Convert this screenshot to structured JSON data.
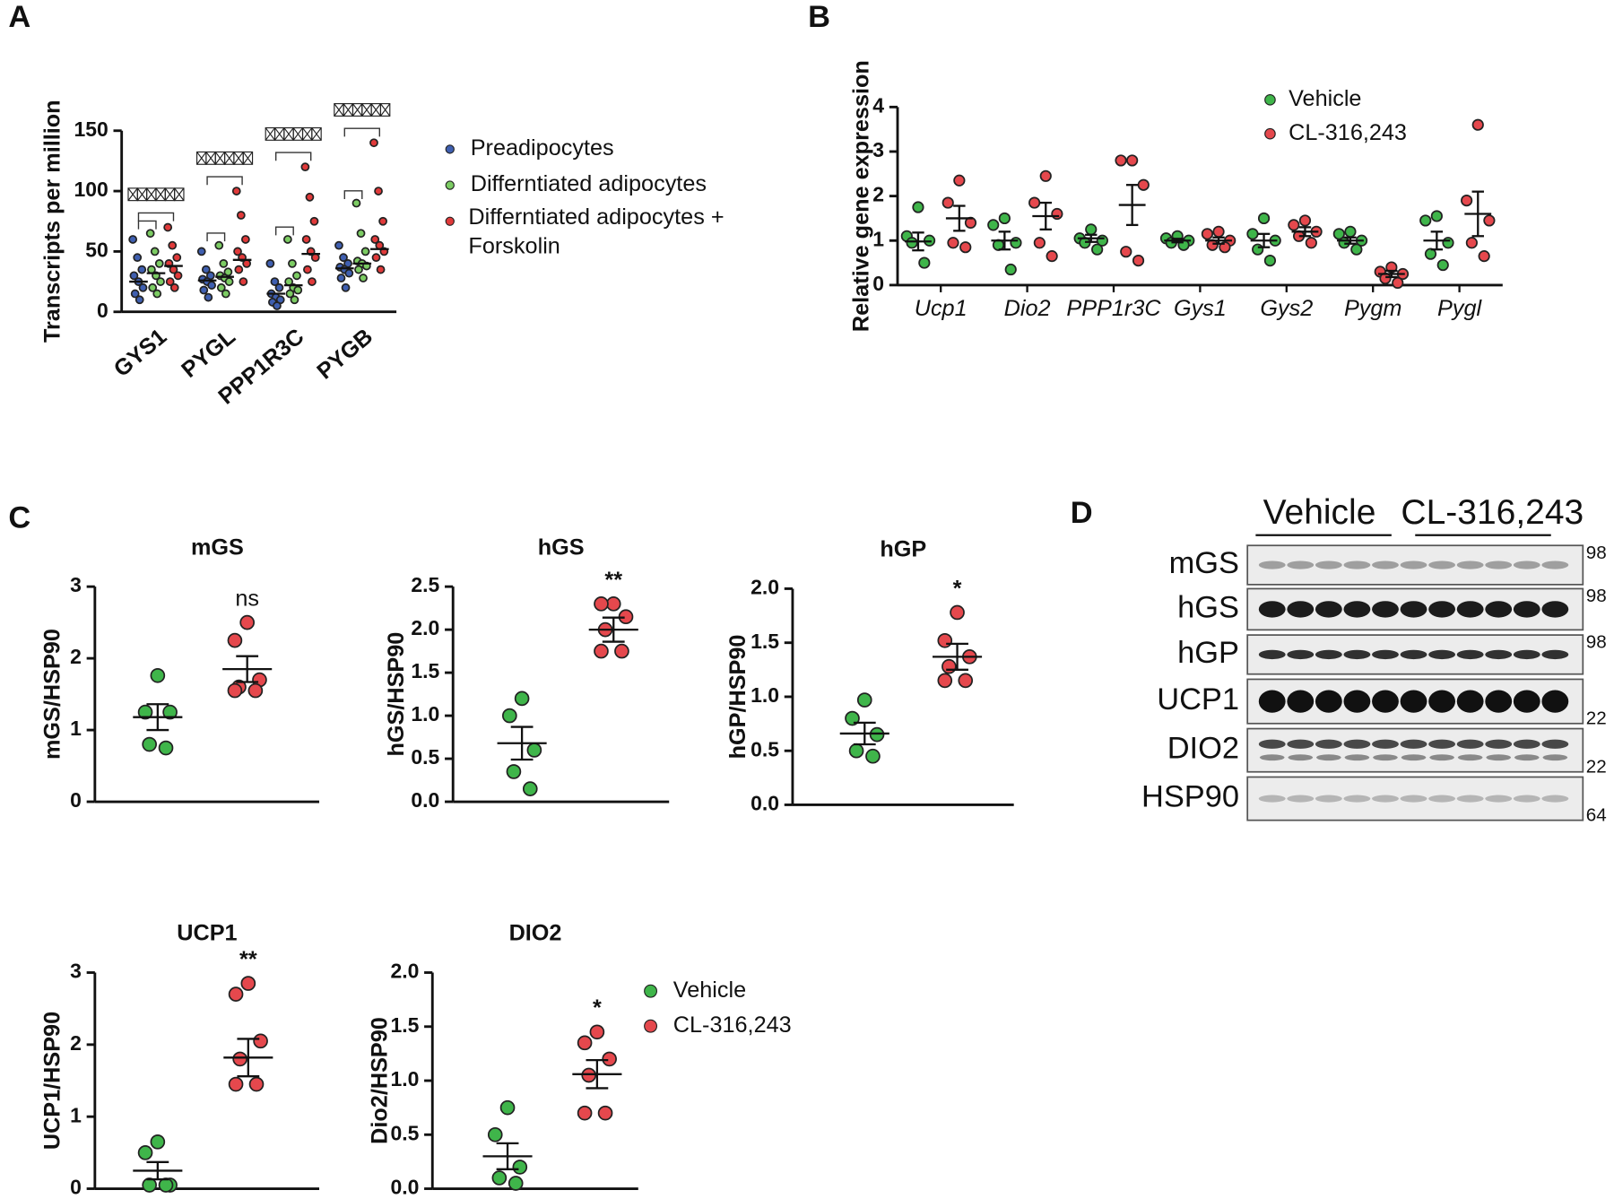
{
  "chart_data": [
    {
      "type": "strip",
      "label": "A",
      "ylabel": "Transcripts per million",
      "categories": [
        "GYS1",
        "PYGL",
        "PPP1R3C",
        "PYGB"
      ],
      "ylim": [
        0,
        150
      ],
      "yticks": [
        0,
        50,
        100,
        150
      ],
      "series": [
        {
          "name": "Preadipocytes",
          "color": "#3f5fb0",
          "values": [
            [
              60,
              45,
              35,
              30,
              25,
              20,
              15,
              10
            ],
            [
              50,
              35,
              30,
              27,
              25,
              22,
              18,
              12
            ],
            [
              40,
              25,
              20,
              15,
              12,
              10,
              8,
              5
            ],
            [
              55,
              45,
              40,
              37,
              35,
              32,
              28,
              20
            ]
          ],
          "means": [
            25,
            26,
            15,
            36
          ]
        },
        {
          "name": "Differntiated adipocytes",
          "color": "#7ccc63",
          "values": [
            [
              65,
              50,
              40,
              35,
              30,
              25,
              20,
              15
            ],
            [
              55,
              40,
              33,
              30,
              28,
              25,
              20,
              15
            ],
            [
              60,
              40,
              30,
              25,
              20,
              18,
              15,
              10
            ],
            [
              90,
              65,
              50,
              42,
              40,
              38,
              35,
              28
            ]
          ],
          "means": [
            32,
            29,
            22,
            40
          ]
        },
        {
          "name": "Differntiated adipocytes + Forskolin",
          "color": "#e03a3a",
          "values": [
            [
              70,
              55,
              45,
              40,
              35,
              30,
              25,
              20
            ],
            [
              100,
              80,
              60,
              50,
              45,
              40,
              35,
              25
            ],
            [
              120,
              95,
              75,
              60,
              50,
              45,
              35,
              25
            ],
            [
              140,
              100,
              75,
              60,
              55,
              50,
              45,
              35
            ]
          ],
          "means": [
            38,
            43,
            48,
            52
          ]
        }
      ]
    },
    {
      "type": "dot",
      "label": "B",
      "ylabel": "Relative gene expression",
      "categories": [
        "Ucp1",
        "Dio2",
        "PPP1r3C",
        "Gys1",
        "Gys2",
        "Pygm",
        "Pygl"
      ],
      "ylim": [
        0,
        4
      ],
      "yticks": [
        0,
        1,
        2,
        3,
        4
      ],
      "series": [
        {
          "name": "Vehicle",
          "color": "#3fb54a",
          "values": [
            [
              1.75,
              1.1,
              1.0,
              0.95,
              0.5
            ],
            [
              1.5,
              1.35,
              0.95,
              0.9,
              0.35
            ],
            [
              1.25,
              1.05,
              1.0,
              0.95,
              0.8
            ],
            [
              1.1,
              1.05,
              1.0,
              0.95,
              0.9
            ],
            [
              1.5,
              1.15,
              1.0,
              0.8,
              0.55
            ],
            [
              1.2,
              1.15,
              1.0,
              0.95,
              0.8
            ],
            [
              1.55,
              1.45,
              0.95,
              0.7,
              0.45
            ]
          ],
          "means": [
            0.98,
            1.0,
            1.05,
            1.0,
            1.0,
            1.0,
            1.0
          ],
          "errors": [
            0.2,
            0.2,
            0.08,
            0.04,
            0.15,
            0.07,
            0.2
          ]
        },
        {
          "name": "CL-316,243",
          "color": "#e5484d",
          "values": [
            [
              2.35,
              1.85,
              1.4,
              0.95,
              0.85
            ],
            [
              2.45,
              1.85,
              1.6,
              0.95,
              0.65
            ],
            [
              2.8,
              2.8,
              2.25,
              0.75,
              0.55
            ],
            [
              1.2,
              1.15,
              1.0,
              0.9,
              0.85
            ],
            [
              1.45,
              1.35,
              1.2,
              1.1,
              0.95
            ],
            [
              0.4,
              0.3,
              0.25,
              0.15,
              0.05
            ],
            [
              3.6,
              1.9,
              1.45,
              0.95,
              0.65
            ]
          ],
          "means": [
            1.5,
            1.55,
            1.8,
            1.0,
            1.2,
            0.25,
            1.6
          ],
          "errors": [
            0.28,
            0.3,
            0.45,
            0.07,
            0.1,
            0.07,
            0.5
          ]
        }
      ]
    },
    {
      "type": "dot",
      "label": "C",
      "title": "mGS",
      "ylabel": "mGS/HSP90",
      "annotation": "ns",
      "ylim": [
        0,
        3
      ],
      "yticks": [
        0,
        1,
        2,
        3
      ],
      "series": [
        {
          "color": "#3fb54a",
          "values": [
            1.76,
            1.25,
            1.25,
            0.8,
            0.75
          ],
          "mean": 1.18,
          "error": 0.18
        },
        {
          "color": "#e5484d",
          "values": [
            2.5,
            2.25,
            1.7,
            1.6,
            1.55,
            1.55
          ],
          "mean": 1.85,
          "error": 0.18
        }
      ]
    },
    {
      "type": "dot",
      "title": "hGS",
      "ylabel": "hGS/HSP90",
      "annotation": "**",
      "ylim": [
        0,
        2.5
      ],
      "yticks": [
        {
          "value": 0,
          "label": "0.0"
        },
        0.5,
        {
          "value": 1,
          "label": "1.0"
        },
        1.5,
        {
          "value": 2,
          "label": "2.0"
        },
        2.5
      ],
      "series": [
        {
          "color": "#3fb54a",
          "values": [
            1.2,
            1.0,
            0.6,
            0.35,
            0.15
          ],
          "mean": 0.68,
          "error": 0.19
        },
        {
          "color": "#e5484d",
          "values": [
            2.3,
            2.3,
            2.15,
            2.0,
            1.75,
            1.75
          ],
          "mean": 2.0,
          "error": 0.14
        }
      ]
    },
    {
      "type": "dot",
      "title": "hGP",
      "ylabel": "hGP/HSP90",
      "annotation": "*",
      "ylim": [
        0,
        2
      ],
      "yticks": [
        {
          "value": 0,
          "label": "0.0"
        },
        0.5,
        {
          "value": 1,
          "label": "1.0"
        },
        1.5,
        {
          "value": 2,
          "label": "2.0"
        }
      ],
      "series": [
        {
          "color": "#3fb54a",
          "values": [
            0.97,
            0.8,
            0.65,
            0.5,
            0.45
          ],
          "mean": 0.66,
          "error": 0.1
        },
        {
          "color": "#e5484d",
          "values": [
            1.78,
            1.52,
            1.37,
            1.28,
            1.15,
            1.15
          ],
          "mean": 1.37,
          "error": 0.12
        }
      ]
    },
    {
      "type": "dot",
      "title": "UCP1",
      "ylabel": "UCP1/HSP90",
      "annotation": "**",
      "ylim": [
        0,
        3
      ],
      "yticks": [
        0,
        1,
        2,
        3
      ],
      "series": [
        {
          "color": "#3fb54a",
          "values": [
            0.65,
            0.5,
            0.05,
            0.05,
            0.05
          ],
          "mean": 0.25,
          "error": 0.12
        },
        {
          "color": "#e5484d",
          "values": [
            2.85,
            2.7,
            2.05,
            1.8,
            1.45,
            1.45
          ],
          "mean": 1.82,
          "error": 0.26
        }
      ]
    },
    {
      "type": "dot",
      "title": "DIO2",
      "ylabel": "Dio2/HSP90",
      "annotation": "*",
      "ylim": [
        0,
        2
      ],
      "yticks": [
        {
          "value": 0,
          "label": "0.0"
        },
        0.5,
        {
          "value": 1,
          "label": "1.0"
        },
        1.5,
        {
          "value": 2,
          "label": "2.0"
        }
      ],
      "series": [
        {
          "name": "Vehicle",
          "color": "#3fb54a",
          "values": [
            0.75,
            0.5,
            0.2,
            0.1,
            0.05
          ],
          "mean": 0.3,
          "error": 0.12
        },
        {
          "name": "CL-316,243",
          "color": "#e5484d",
          "values": [
            1.45,
            1.35,
            1.2,
            1.05,
            0.7,
            0.7
          ],
          "mean": 1.06,
          "error": 0.13
        }
      ]
    }
  ],
  "blot": {
    "label": "D",
    "groups": [
      "Vehicle",
      "CL-316,243"
    ],
    "rows": [
      {
        "name": "mGS",
        "mw": 98
      },
      {
        "name": "hGS",
        "mw": 98
      },
      {
        "name": "hGP",
        "mw": 98
      },
      {
        "name": "UCP1",
        "mw": 22
      },
      {
        "name": "DIO2",
        "mw": 22
      },
      {
        "name": "HSP90",
        "mw": 64
      }
    ]
  }
}
